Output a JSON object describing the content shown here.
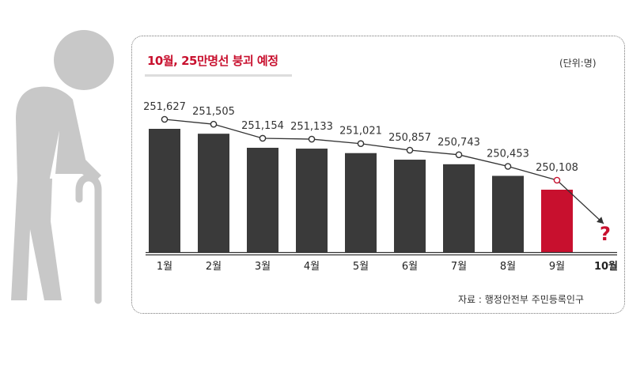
{
  "colors": {
    "bar": "#3a3a3a",
    "highlight": "#c8102e",
    "line": "#333333",
    "figure": "#c8c8c8"
  },
  "icons": {
    "figure": "elderly-person-with-cane-icon"
  },
  "chart_data": {
    "type": "bar",
    "title": "10월, 25만명선 붕괴 예정",
    "unit": "(단위:명)",
    "source": "자료 : 행정안전부 주민등록인구",
    "categories": [
      "1월",
      "2월",
      "3월",
      "4월",
      "5월",
      "6월",
      "7월",
      "8월",
      "9월",
      "10월"
    ],
    "values": [
      251627,
      251505,
      251154,
      251133,
      251021,
      250857,
      250743,
      250453,
      250108,
      null
    ],
    "value_labels": [
      "251,627",
      "251,505",
      "251,154",
      "251,133",
      "251,021",
      "250,857",
      "250,743",
      "250,453",
      "250,108",
      "?"
    ],
    "highlight_index": 8,
    "forecast_index": 9,
    "overlay": "line with markers connecting bar values, arrow to forecast"
  }
}
